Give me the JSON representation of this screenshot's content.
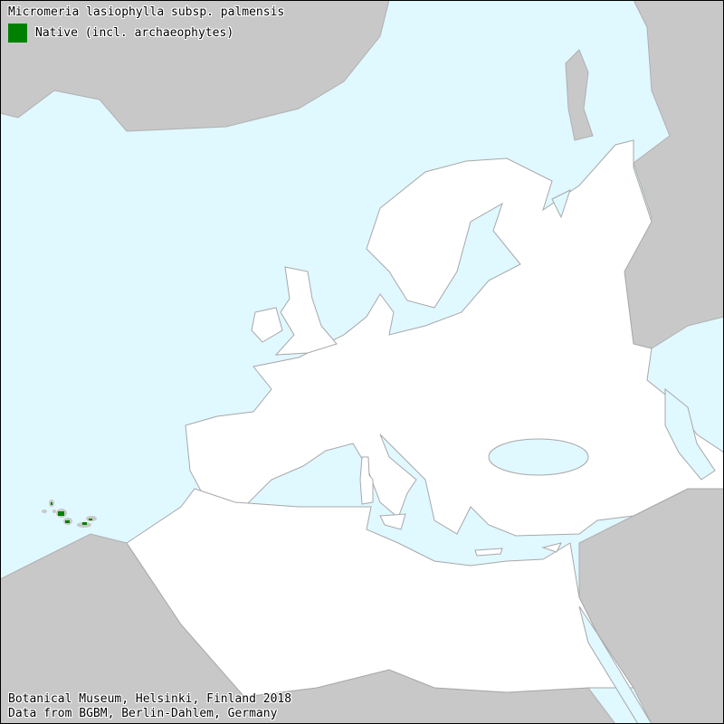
{
  "map": {
    "title": "Micromeria lasiophylla subsp. palmensis",
    "legend": [
      {
        "label": "Native (incl. archaeophytes)",
        "color": "#008000"
      }
    ],
    "footer": [
      "Botanical Museum, Helsinki, Finland 2018",
      "Data from BGBM, Berlin-Dahlem, Germany"
    ],
    "colors": {
      "sea": "#e0f8ff",
      "outside_land": "#c8c8c8",
      "mapped_land": "#ffffff",
      "borders": "#a8a8a8",
      "native": "#008000"
    },
    "occurrence_region": "Canary Islands"
  }
}
